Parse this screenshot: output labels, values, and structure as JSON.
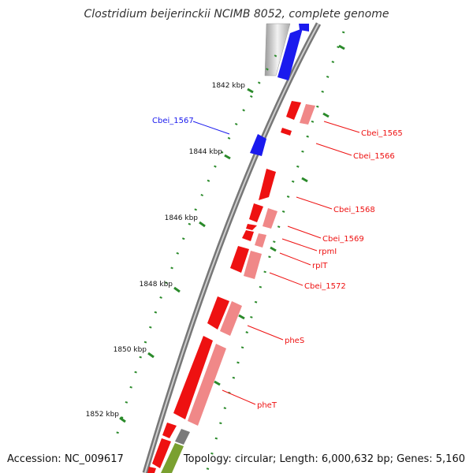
{
  "title": "Clostridium beijerinckii NCIMB 8052, complete genome",
  "footer": {
    "accession": "Accession: NC_009617",
    "summary": "Topology: circular; Length: 6,000,632 bp; Genes: 5,160"
  },
  "colors": {
    "forward_cds": "#1a1aee",
    "reverse_cds": "#ee1111",
    "reverse_cds_light": "#f08888",
    "gray_feature": "#c8c8c8",
    "tick": "#2a8a2a",
    "backbone": "#7a7a7a",
    "olive_feature": "#7aa030"
  },
  "scale": {
    "ticks": [
      {
        "label": "1842 kbp"
      },
      {
        "label": "1844 kbp"
      },
      {
        "label": "1846 kbp"
      },
      {
        "label": "1848 kbp"
      },
      {
        "label": "1850 kbp"
      },
      {
        "label": "1852 kbp"
      }
    ]
  },
  "genes": [
    {
      "label": "Cbei_1567",
      "strand": "forward"
    },
    {
      "label": "Cbei_1565",
      "strand": "reverse"
    },
    {
      "label": "Cbei_1566",
      "strand": "reverse"
    },
    {
      "label": "Cbei_1568",
      "strand": "reverse"
    },
    {
      "label": "Cbei_1569",
      "strand": "reverse"
    },
    {
      "label": "rpmI",
      "strand": "reverse"
    },
    {
      "label": "rplT",
      "strand": "reverse"
    },
    {
      "label": "Cbei_1572",
      "strand": "reverse"
    },
    {
      "label": "pheS",
      "strand": "reverse"
    },
    {
      "label": "pheT",
      "strand": "reverse"
    }
  ]
}
